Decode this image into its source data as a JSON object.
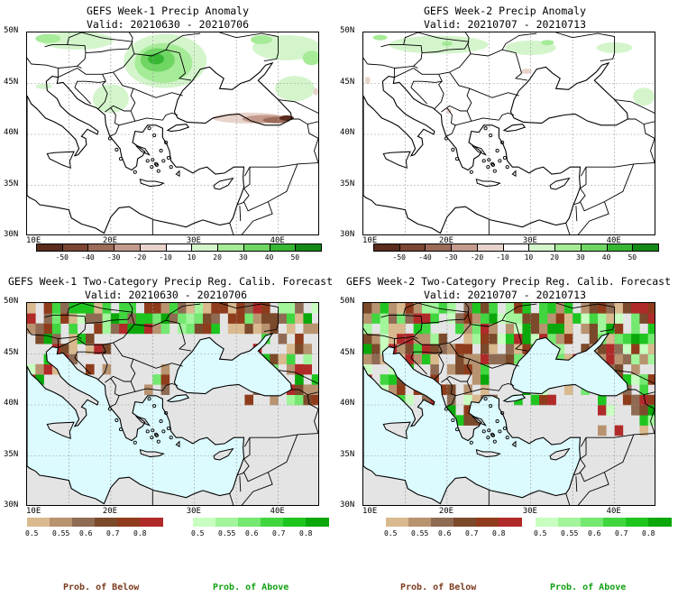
{
  "panels": [
    {
      "id": "p1",
      "title": "GEFS Week-1 Precip Anomaly",
      "valid": "Valid: 20210630 - 20210706",
      "kind": "anomaly"
    },
    {
      "id": "p2",
      "title": "GEFS Week-2 Precip Anomaly",
      "valid": "Valid: 20210707 - 20210713",
      "kind": "anomaly"
    },
    {
      "id": "p3",
      "title": "GEFS Week-1 Two-Category Precip Reg. Calib. Forecast",
      "valid": "Valid: 20210630 - 20210706",
      "kind": "prob"
    },
    {
      "id": "p4",
      "title": "GEFS Week-2 Two-Category Precip Reg. Calib. Forecast",
      "valid": "Valid: 20210707 - 20210713",
      "kind": "prob"
    }
  ],
  "lat_labels": [
    "50N",
    "45N",
    "40N",
    "35N",
    "30N"
  ],
  "lon_labels": [
    "10E",
    "20E",
    "30E",
    "40E"
  ],
  "anomaly_colorbar": {
    "labels": [
      "-50",
      "-40",
      "-30",
      "-20",
      "-10",
      "10",
      "20",
      "30",
      "40",
      "50"
    ],
    "colors": [
      "#5a2c1e",
      "#7b4632",
      "#9c6b5a",
      "#c49a8c",
      "#e8d4cc",
      "#ffffff",
      "#d4f5cc",
      "#a6eb98",
      "#6fd664",
      "#37b734",
      "#138a17"
    ]
  },
  "prob_below_colorbar": {
    "labels": [
      "0.5",
      "0.55",
      "0.6",
      "0.7",
      "0.8"
    ],
    "colors": [
      "#d9b98e",
      "#b89370",
      "#8f6b53",
      "#7b4a2b",
      "#8f3c1c",
      "#b12a2a"
    ],
    "caption": "Prob. of Below",
    "caption_color": "#7b3a1e"
  },
  "prob_above_colorbar": {
    "labels": [
      "0.5",
      "0.55",
      "0.6",
      "0.7",
      "0.8"
    ],
    "colors": [
      "#c8ffc0",
      "#a2f59a",
      "#74e870",
      "#41d63f",
      "#1fc51f",
      "#0aa80a"
    ],
    "caption": "Prob. of Above",
    "caption_color": "#12a012"
  },
  "colors": {
    "sea_prob": "#dcfbff",
    "land_gray": "#e4e4e4",
    "land_white": "#ffffff",
    "coast": "#000000",
    "grid": "#9a9a9a"
  }
}
